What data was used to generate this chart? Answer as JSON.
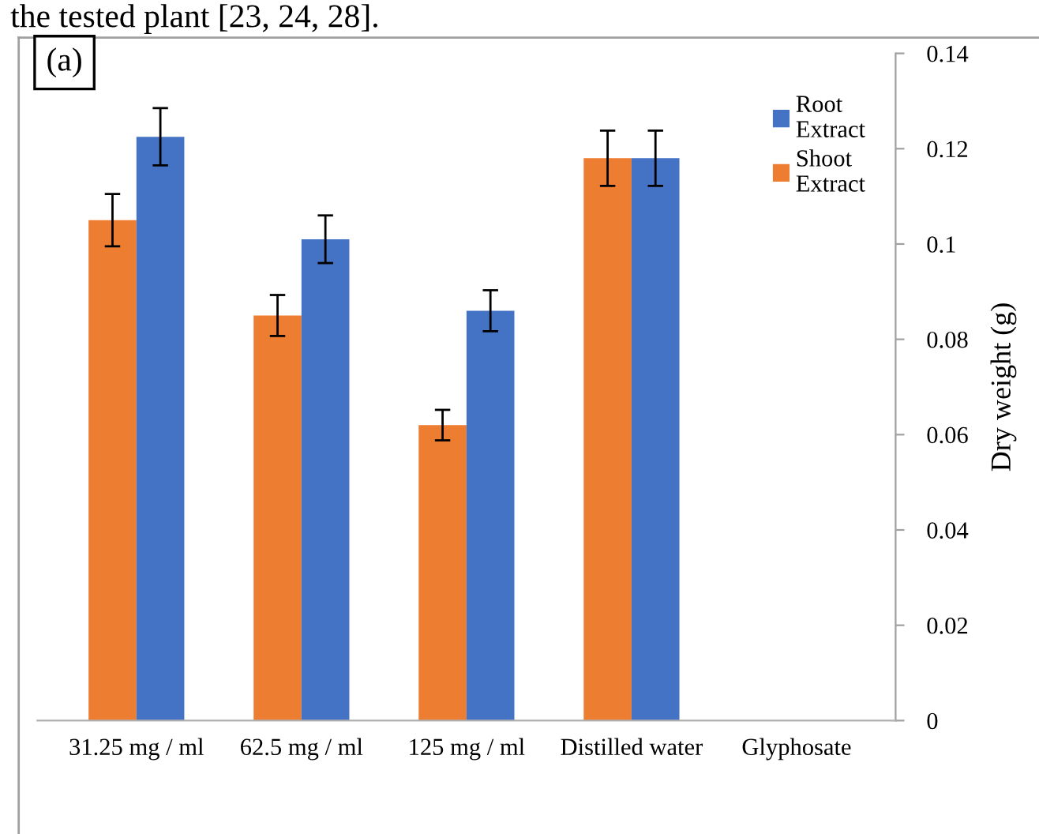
{
  "chart_data": {
    "type": "bar",
    "annotations": [
      "the tested plant [23, 24, 28].",
      "(a)"
    ],
    "ylabel": "Dry weight (g)",
    "categories": [
      "31.25 mg / ml",
      "62.5 mg / ml",
      "125 mg / ml",
      "Distilled water",
      "Glyphosate"
    ],
    "series": [
      {
        "name": "Shoot Extract",
        "color": "#ed7d31",
        "values": [
          0.105,
          0.085,
          0.062,
          0.118,
          null
        ],
        "errors": [
          0.0055,
          0.0043,
          0.0032,
          0.0058,
          null
        ]
      },
      {
        "name": "Root Extract",
        "color": "#4472c4",
        "values": [
          0.1225,
          0.101,
          0.086,
          0.118,
          null
        ],
        "errors": [
          0.006,
          0.005,
          0.0043,
          0.0058,
          null
        ]
      }
    ],
    "ylim": [
      0,
      0.14
    ],
    "yticks": [
      0,
      0.02,
      0.04,
      0.06,
      0.08,
      0.1,
      0.12,
      0.14
    ],
    "legend": "top right",
    "grid": false
  }
}
